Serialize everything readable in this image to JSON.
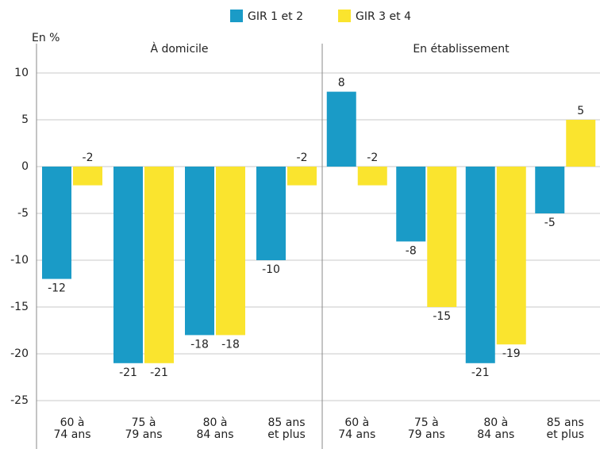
{
  "chart_data": [
    {
      "type": "bar",
      "title": "À domicile",
      "y_label": "En %",
      "categories": [
        "60 à\n74 ans",
        "75 à\n79 ans",
        "80 à\n84 ans",
        "85 ans\net plus"
      ],
      "series": [
        {
          "name": "GIR 1 et 2",
          "color": "#1a9bc7",
          "values": [
            -12,
            -21,
            -18,
            -10
          ]
        },
        {
          "name": "GIR 3 et 4",
          "color": "#fae42e",
          "values": [
            -2,
            -21,
            -18,
            -2
          ]
        }
      ],
      "ylim": [
        -30,
        12.5
      ],
      "yticks": [
        -25,
        -20,
        -15,
        -10,
        -5,
        0,
        5,
        10
      ],
      "grid": true
    },
    {
      "type": "bar",
      "title": "En établissement",
      "categories": [
        "60 à\n74 ans",
        "75 à\n79 ans",
        "80 à\n84 ans",
        "85 ans\net plus"
      ],
      "series": [
        {
          "name": "GIR 1 et 2",
          "color": "#1a9bc7",
          "values": [
            8,
            -8,
            -21,
            -5
          ]
        },
        {
          "name": "GIR 3 et 4",
          "color": "#fae42e",
          "values": [
            -2,
            -15,
            -19,
            5
          ]
        }
      ],
      "ylim": [
        -30,
        12.5
      ],
      "yticks": [
        -25,
        -20,
        -15,
        -10,
        -5,
        0,
        5,
        10
      ],
      "grid": true
    }
  ]
}
